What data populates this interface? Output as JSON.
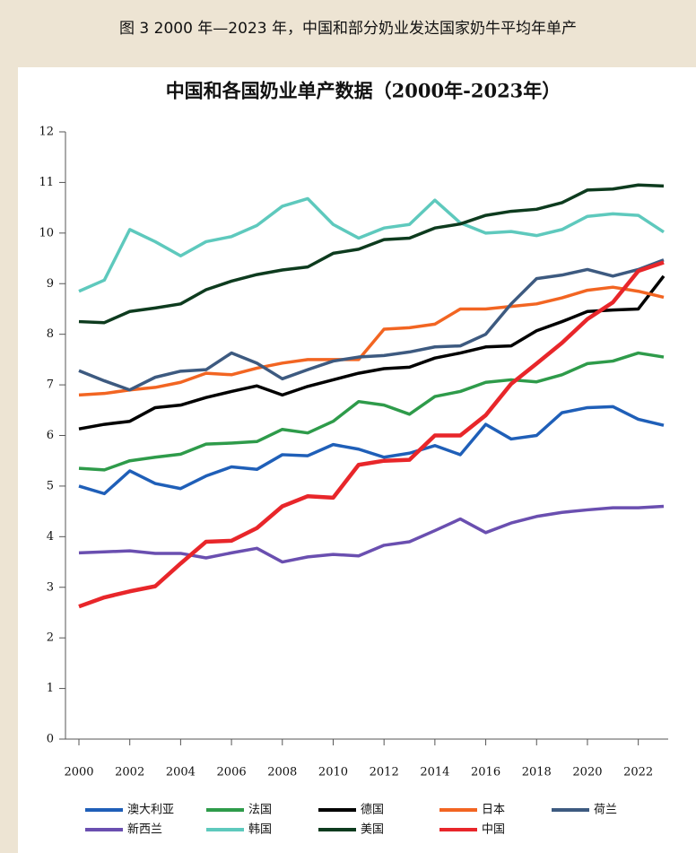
{
  "caption": "图 3 2000 年—2023 年，中国和部分奶业发达国家奶牛平均年单产",
  "chart_data": {
    "type": "line",
    "title": "中国和各国奶业单产数据（2000年-2023年）",
    "x": [
      2000,
      2001,
      2002,
      2003,
      2004,
      2005,
      2006,
      2007,
      2008,
      2009,
      2010,
      2011,
      2012,
      2013,
      2014,
      2015,
      2016,
      2017,
      2018,
      2019,
      2020,
      2021,
      2022,
      2023
    ],
    "xlim": [
      2000,
      2023
    ],
    "xticks": [
      2000,
      2002,
      2004,
      2006,
      2008,
      2010,
      2012,
      2014,
      2016,
      2018,
      2020,
      2022
    ],
    "ylim": [
      0,
      12
    ],
    "yticks": [
      0,
      1,
      2,
      3,
      4,
      5,
      6,
      7,
      8,
      9,
      10,
      11,
      12
    ],
    "series": [
      {
        "name": "澳大利亚",
        "color": "#1f5fb8",
        "values": [
          5.0,
          4.85,
          5.3,
          5.05,
          4.95,
          5.2,
          5.38,
          5.33,
          5.62,
          5.6,
          5.82,
          5.73,
          5.57,
          5.65,
          5.8,
          5.62,
          6.22,
          5.93,
          6.0,
          6.45,
          6.55,
          6.57,
          6.32,
          6.2
        ]
      },
      {
        "name": "法国",
        "color": "#2e9b4a",
        "values": [
          5.35,
          5.32,
          5.5,
          5.57,
          5.63,
          5.83,
          5.85,
          5.88,
          6.12,
          6.05,
          6.28,
          6.67,
          6.6,
          6.42,
          6.77,
          6.87,
          7.05,
          7.1,
          7.06,
          7.2,
          7.42,
          7.47,
          7.63,
          7.55
        ]
      },
      {
        "name": "德国",
        "color": "#000000",
        "values": [
          6.13,
          6.22,
          6.28,
          6.55,
          6.6,
          6.75,
          6.87,
          6.98,
          6.8,
          6.97,
          7.1,
          7.23,
          7.32,
          7.35,
          7.53,
          7.63,
          7.75,
          7.77,
          8.07,
          8.25,
          8.45,
          8.48,
          8.5,
          9.15
        ]
      },
      {
        "name": "日本",
        "color": "#f26522",
        "values": [
          6.8,
          6.83,
          6.9,
          6.95,
          7.05,
          7.23,
          7.2,
          7.33,
          7.43,
          7.5,
          7.5,
          7.5,
          8.1,
          8.13,
          8.2,
          8.5,
          8.5,
          8.55,
          8.6,
          8.72,
          8.87,
          8.93,
          8.85,
          8.73
        ]
      },
      {
        "name": "荷兰",
        "color": "#3d5a80",
        "values": [
          7.28,
          7.08,
          6.9,
          7.15,
          7.27,
          7.3,
          7.63,
          7.43,
          7.12,
          7.3,
          7.47,
          7.55,
          7.58,
          7.65,
          7.75,
          7.77,
          8.0,
          8.6,
          9.1,
          9.17,
          9.28,
          9.15,
          9.28,
          9.47
        ]
      },
      {
        "name": "新西兰",
        "color": "#6a4fb0",
        "values": [
          3.68,
          3.7,
          3.72,
          3.67,
          3.67,
          3.58,
          3.68,
          3.77,
          3.5,
          3.6,
          3.65,
          3.62,
          3.83,
          3.9,
          4.12,
          4.35,
          4.08,
          4.27,
          4.4,
          4.48,
          4.53,
          4.57,
          4.57,
          4.6
        ]
      },
      {
        "name": "韩国",
        "color": "#5ec9bd",
        "values": [
          8.85,
          9.07,
          10.07,
          9.83,
          9.55,
          9.83,
          9.93,
          10.15,
          10.53,
          10.68,
          10.17,
          9.9,
          10.1,
          10.17,
          10.65,
          10.2,
          10.0,
          10.03,
          9.95,
          10.07,
          10.33,
          10.38,
          10.35,
          10.02
        ]
      },
      {
        "name": "美国",
        "color": "#0d3b1e",
        "values": [
          8.25,
          8.23,
          8.45,
          8.52,
          8.6,
          8.88,
          9.05,
          9.18,
          9.27,
          9.33,
          9.6,
          9.68,
          9.87,
          9.9,
          10.1,
          10.18,
          10.35,
          10.43,
          10.47,
          10.6,
          10.85,
          10.87,
          10.95,
          10.93
        ]
      },
      {
        "name": "中国",
        "color": "#e8262a",
        "values": [
          2.62,
          2.8,
          2.92,
          3.02,
          3.47,
          3.9,
          3.92,
          4.17,
          4.6,
          4.8,
          4.77,
          5.42,
          5.5,
          5.52,
          6.0,
          6.0,
          6.4,
          7.02,
          7.42,
          7.83,
          8.3,
          8.63,
          9.25,
          9.42
        ]
      }
    ]
  }
}
